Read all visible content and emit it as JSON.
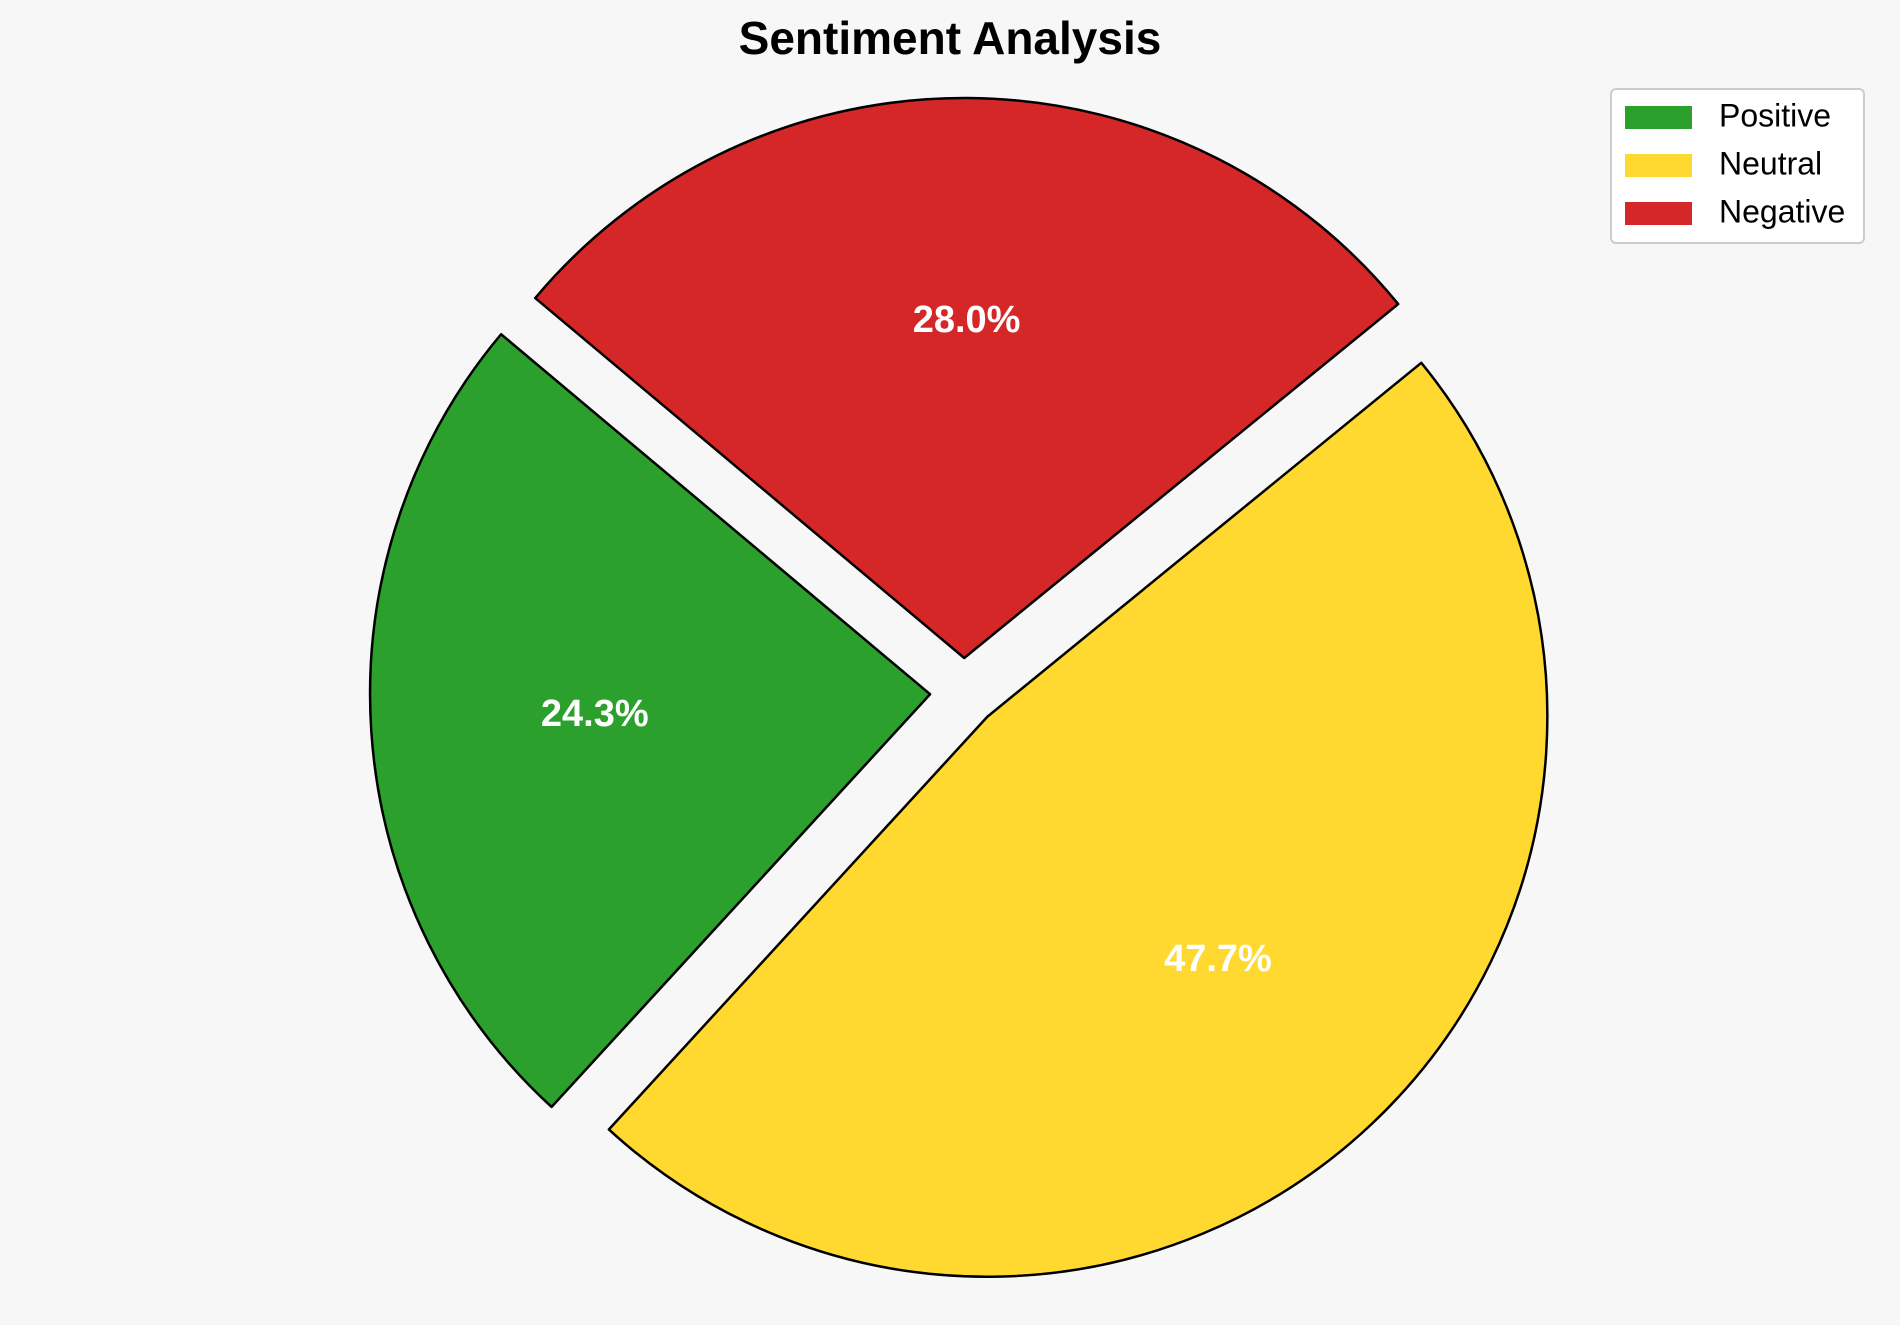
{
  "chart_data": {
    "type": "pie",
    "title": "Sentiment Analysis",
    "slices": [
      {
        "label": "Positive",
        "value": 24.3,
        "percent_label": "24.3%",
        "color": "#2ca02c"
      },
      {
        "label": "Neutral",
        "value": 47.7,
        "percent_label": "47.7%",
        "color": "#ffd92f"
      },
      {
        "label": "Negative",
        "value": 28.0,
        "percent_label": "28.0%",
        "color": "#d62728"
      }
    ],
    "exploded": true,
    "edge_color": "#000000",
    "legend": {
      "placement": "top-right",
      "entries": [
        "Positive",
        "Neutral",
        "Negative"
      ]
    }
  }
}
